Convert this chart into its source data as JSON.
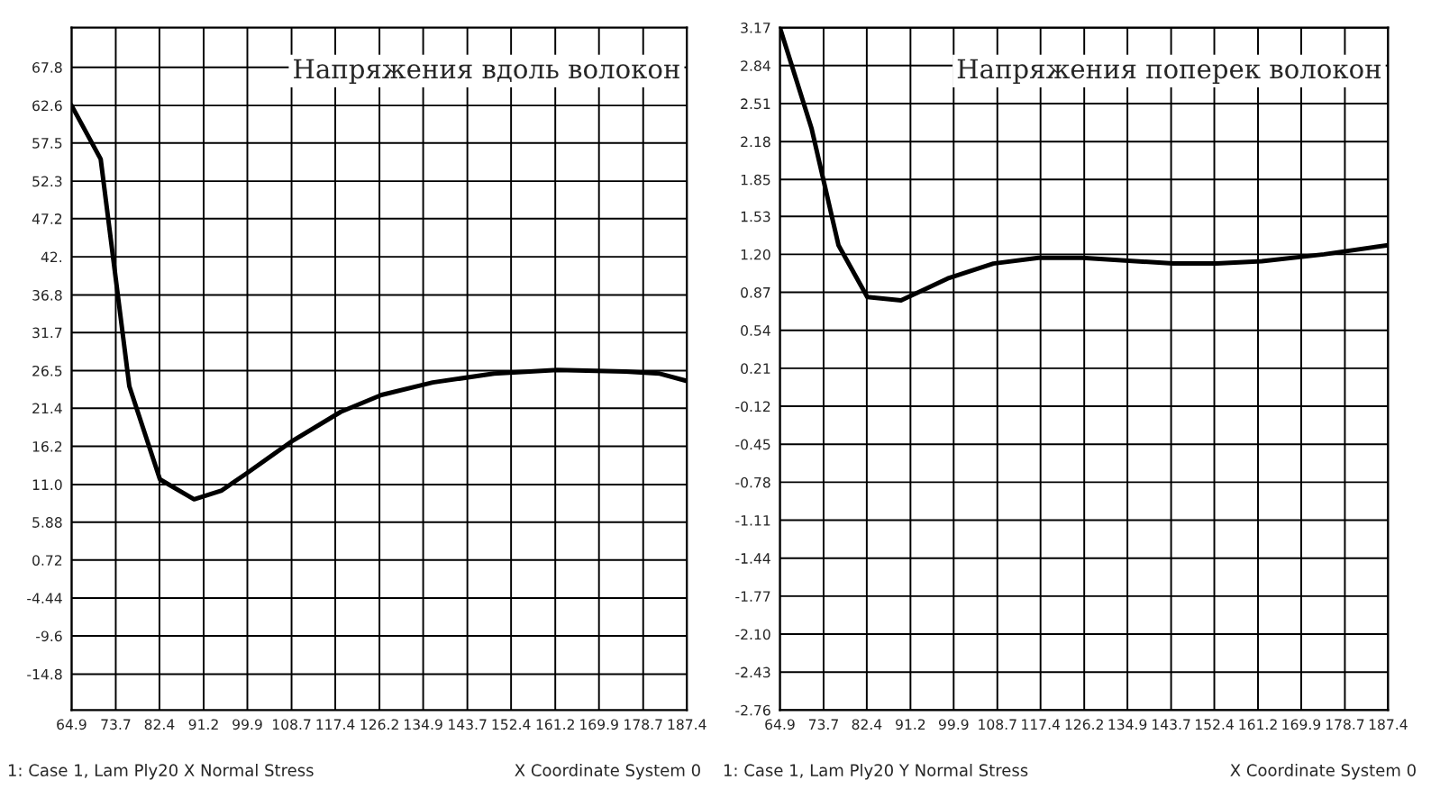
{
  "chart_data": [
    {
      "type": "line",
      "title": "Напряжения вдоль волокон",
      "xlim": [
        64.9,
        187.4
      ],
      "ylim": [
        -19.7,
        73.2
      ],
      "grid": true,
      "line_style": "solid",
      "xticks": [
        64.9,
        73.7,
        82.4,
        91.2,
        99.9,
        108.7,
        117.4,
        126.2,
        134.9,
        143.7,
        152.4,
        161.2,
        169.9,
        178.7,
        187.4
      ],
      "yticks": [
        67.8,
        62.6,
        57.5,
        52.3,
        47.2,
        {
          "value": 42,
          "label": "42."
        },
        36.8,
        31.7,
        26.5,
        21.4,
        16.2,
        {
          "value": 11.0,
          "label": "11.0"
        },
        5.88,
        0.72,
        -4.44,
        -9.6,
        -14.8
      ],
      "series": [
        {
          "color": "#000000",
          "x": [
            64.9,
            70.7,
            76.4,
            82.5,
            89.3,
            94.8,
            99.9,
            109.0,
            118.5,
            126.6,
            136.8,
            149.0,
            161.6,
            175.2,
            182.0,
            187.4
          ],
          "values": [
            62.6,
            55.3,
            24.4,
            11.7,
            9.0,
            10.2,
            12.6,
            17.0,
            20.9,
            23.2,
            24.9,
            26.1,
            26.6,
            26.4,
            26.1,
            25.1
          ]
        }
      ],
      "annotations": [
        "1: Case 1, Lam Ply20 X Normal Stress",
        "X Coordinate System 0"
      ]
    },
    {
      "type": "line",
      "title": "Напряжения поперек волокон",
      "xlim": [
        64.9,
        187.4
      ],
      "ylim": [
        -2.76,
        3.17
      ],
      "grid": true,
      "line_style": "solid",
      "xticks": [
        64.9,
        73.7,
        82.4,
        91.2,
        99.9,
        108.7,
        117.4,
        126.2,
        134.9,
        143.7,
        152.4,
        161.2,
        169.9,
        178.7,
        187.4
      ],
      "yticks": [
        3.17,
        2.84,
        2.51,
        2.18,
        1.85,
        1.53,
        {
          "value": 1.2,
          "label": "1.20"
        },
        0.87,
        0.54,
        0.21,
        -0.12,
        -0.45,
        -0.78,
        -1.11,
        -1.44,
        -1.77,
        {
          "value": -2.1,
          "label": "-2.10"
        },
        -2.43,
        -2.76
      ],
      "series": [
        {
          "color": "#000000",
          "x": [
            64.9,
            71.3,
            76.7,
            82.5,
            89.3,
            98.7,
            107.9,
            117.0,
            125.8,
            144.1,
            152.9,
            162.0,
            174.5,
            187.4
          ],
          "values": [
            3.17,
            2.29,
            1.28,
            0.83,
            0.8,
            0.99,
            1.12,
            1.17,
            1.17,
            1.12,
            1.12,
            1.14,
            1.2,
            1.28
          ]
        }
      ],
      "annotations": [
        "1: Case 1, Lam Ply20 Y Normal Stress",
        "X Coordinate System 0"
      ]
    }
  ]
}
